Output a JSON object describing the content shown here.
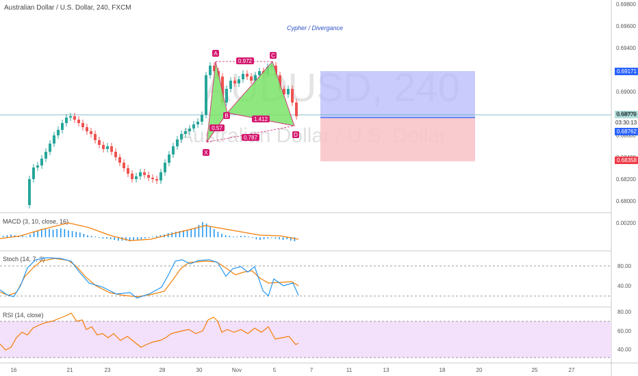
{
  "header": {
    "symbol_title": "Australian Dollar / U.S. Dollar, 240, FXCM"
  },
  "watermark": {
    "ticker": "AUDUSD, 240",
    "name": "Australian Dollar / U.S. Dollar"
  },
  "annotation": "Cypher / Divergance",
  "pattern": {
    "points": [
      {
        "label": "X",
        "date": "Oct 30",
        "price": 0.6848
      },
      {
        "label": "A",
        "date": "Oct 31",
        "price": 0.693
      },
      {
        "label": "B",
        "date": "Nov 1",
        "price": 0.6883
      },
      {
        "label": "C",
        "date": "Nov 5",
        "price": 0.693
      },
      {
        "label": "D",
        "date": "Nov 6",
        "price": 0.6862
      }
    ],
    "ratios": [
      "0.57",
      "0.972",
      "1.412",
      "0.787"
    ]
  },
  "price_badges": {
    "target": "0.69171",
    "current": "0.68779",
    "countdown": "03:30:13",
    "entry": "0.68762",
    "stop": "0.68358",
    "colors": {
      "target": "#2962ff",
      "current": "#26a69a",
      "entry": "#2962ff",
      "stop": "#ef3b48"
    }
  },
  "price_axis": {
    "ticks": [
      "0.69800",
      "0.69600",
      "0.69400",
      "0.69200",
      "0.69000",
      "0.68800",
      "0.68600",
      "0.68400",
      "0.68200",
      "0.68000"
    ]
  },
  "indicators": {
    "macd": {
      "label": "MACD (3, 10, close, 16)",
      "ticks": [
        "0.00200"
      ]
    },
    "stoch": {
      "label": "Stoch (14, 7, 3)",
      "ticks": [
        "80.00",
        "40.00"
      ]
    },
    "rsi": {
      "label": "RSI (14, close)",
      "ticks": [
        "80.00",
        "60.00",
        "40.00"
      ]
    }
  },
  "x_axis": {
    "ticks": [
      "16",
      "21",
      "23",
      "28",
      "30",
      "Nov",
      "5",
      "7",
      "11",
      "13",
      "18",
      "20",
      "25",
      "27"
    ]
  },
  "colors": {
    "up": "#26a69a",
    "down": "#ef5350",
    "pattern_fill": "#7be36a",
    "pattern_edge": "#d4186f",
    "macd_signal": "#f57c00",
    "macd_hist": "#2196f3",
    "rsi_bg": "#f3e0fb",
    "rsi_line": "#f57c00"
  }
}
